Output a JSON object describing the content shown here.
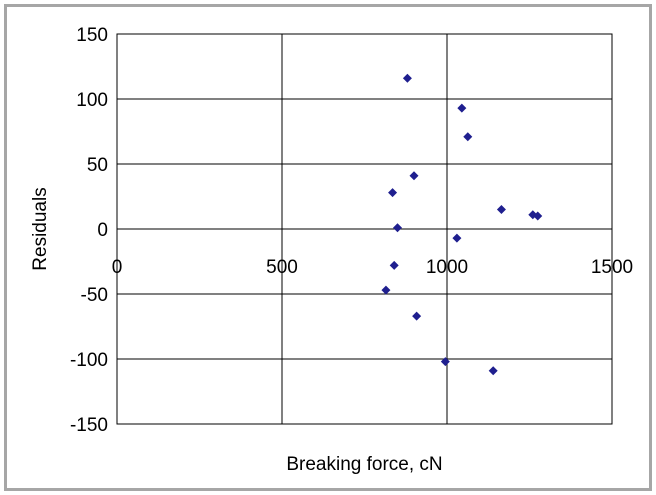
{
  "chart_data": {
    "type": "scatter",
    "title": "",
    "xlabel": "Breaking force, cN",
    "ylabel": "Residuals",
    "xlim": [
      0,
      1500
    ],
    "ylim": [
      -150,
      150
    ],
    "x_ticks": [
      0,
      500,
      1000,
      1500
    ],
    "y_ticks": [
      150,
      100,
      50,
      0,
      -50,
      -100,
      -150
    ],
    "x_tick_labels": [
      "0",
      "500",
      "1000",
      "1500"
    ],
    "y_tick_labels": [
      "150",
      "100",
      "50",
      "0",
      "-50",
      "-100",
      "-150"
    ],
    "grid": true,
    "legend": "none",
    "marker": "diamond",
    "marker_color": "#1f1f8f",
    "series": [
      {
        "points": [
          {
            "x": 880,
            "y": 116
          },
          {
            "x": 1045,
            "y": 93
          },
          {
            "x": 1063,
            "y": 71
          },
          {
            "x": 900,
            "y": 41
          },
          {
            "x": 835,
            "y": 28
          },
          {
            "x": 1165,
            "y": 15
          },
          {
            "x": 1260,
            "y": 11
          },
          {
            "x": 1275,
            "y": 10
          },
          {
            "x": 850,
            "y": 1
          },
          {
            "x": 1030,
            "y": -7
          },
          {
            "x": 840,
            "y": -28
          },
          {
            "x": 815,
            "y": -47
          },
          {
            "x": 908,
            "y": -67
          },
          {
            "x": 995,
            "y": -102
          },
          {
            "x": 1140,
            "y": -109
          }
        ]
      }
    ]
  }
}
